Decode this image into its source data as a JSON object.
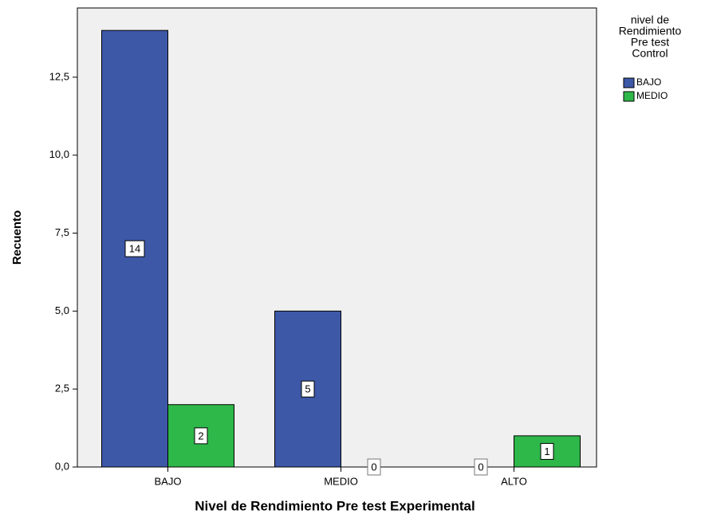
{
  "chart_data": {
    "type": "bar",
    "x_label": "Nivel de Rendimiento Pre test Experimental",
    "y_label": "Recuento",
    "categories": [
      "BAJO",
      "MEDIO",
      "ALTO"
    ],
    "series": [
      {
        "name": "BAJO",
        "color": "#3e58a8",
        "values": [
          14,
          5,
          0
        ]
      },
      {
        "name": "MEDIO",
        "color": "#2eb84a",
        "values": [
          2,
          0,
          1
        ]
      }
    ],
    "ylim": [
      0,
      14.72
    ],
    "yticks": [
      {
        "value": 0,
        "label": "0,0"
      },
      {
        "value": 2.5,
        "label": "2,5"
      },
      {
        "value": 5,
        "label": "5,0"
      },
      {
        "value": 7.5,
        "label": "7,5"
      },
      {
        "value": 10,
        "label": "10,0"
      },
      {
        "value": 12.5,
        "label": "12,5"
      }
    ],
    "legend_title": [
      "nivel de",
      "Rendimiento",
      "Pre test",
      "Control"
    ],
    "legend_position": "right",
    "grid": false
  }
}
